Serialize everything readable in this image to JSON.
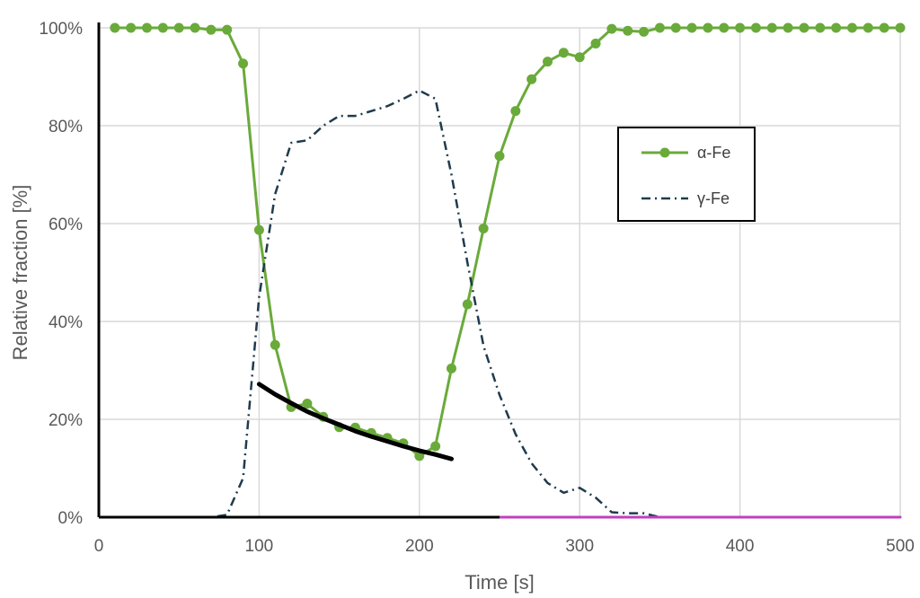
{
  "chart_data": {
    "type": "line",
    "title": "",
    "xlabel": "Time [s]",
    "ylabel": "Relative fraction [%]",
    "xlim": [
      0,
      500
    ],
    "ylim": [
      0,
      100
    ],
    "xticks": [
      0,
      100,
      200,
      300,
      400,
      500
    ],
    "yticks": [
      0,
      20,
      40,
      60,
      80,
      100
    ],
    "xtick_labels": [
      "0",
      "100",
      "200",
      "300",
      "400",
      "500"
    ],
    "ytick_labels": [
      "0%",
      "20%",
      "40%",
      "60%",
      "80%",
      "100%"
    ],
    "grid": true,
    "legend": {
      "position": "right",
      "entries": [
        "α-Fe",
        "γ-Fe"
      ]
    },
    "series": [
      {
        "name": "α-Fe",
        "style": "solid-markers",
        "color": "#6aaa3a",
        "x": [
          10,
          20,
          30,
          40,
          50,
          60,
          70,
          80,
          90,
          100,
          110,
          120,
          130,
          140,
          150,
          160,
          170,
          180,
          190,
          200,
          210,
          220,
          230,
          240,
          250,
          260,
          270,
          280,
          290,
          300,
          310,
          320,
          330,
          340,
          350,
          360,
          370,
          380,
          390,
          400,
          410,
          420,
          430,
          440,
          450,
          460,
          470,
          480,
          490,
          500
        ],
        "y": [
          100,
          100,
          100,
          100,
          100,
          100,
          99.6,
          99.6,
          92.7,
          58.7,
          35.2,
          22.5,
          23.2,
          20.5,
          18.4,
          18.3,
          17.2,
          16.2,
          15.1,
          12.5,
          14.5,
          30.4,
          43.5,
          59,
          73.8,
          83,
          89.5,
          93.1,
          94.9,
          94,
          96.8,
          99.8,
          99.4,
          99.2,
          100,
          100,
          100,
          100,
          100,
          100,
          100,
          100,
          100,
          100,
          100,
          100,
          100,
          100,
          100,
          100
        ]
      },
      {
        "name": "γ-Fe",
        "style": "dash-dot",
        "color": "#1f3b4d",
        "x": [
          0,
          70,
          80,
          90,
          100,
          110,
          120,
          130,
          140,
          150,
          160,
          170,
          180,
          190,
          200,
          210,
          220,
          230,
          240,
          250,
          260,
          270,
          280,
          290,
          300,
          310,
          320,
          330,
          340,
          350,
          400,
          500
        ],
        "y": [
          0,
          0,
          0.5,
          8,
          45,
          66,
          76.5,
          77,
          80,
          82,
          82,
          83,
          84,
          85.5,
          87.2,
          85.5,
          70,
          52,
          35,
          25,
          17,
          11,
          7,
          5,
          6,
          4,
          1,
          0.8,
          0.8,
          0,
          0,
          0
        ]
      },
      {
        "style": "fit-curve",
        "color": "#000000",
        "x": [
          100,
          110,
          120,
          130,
          140,
          150,
          160,
          170,
          180,
          190,
          200,
          210,
          220
        ],
        "y": [
          27.2,
          25.1,
          23.3,
          21.6,
          20.2,
          18.9,
          17.6,
          16.5,
          15.5,
          14.5,
          13.6,
          12.8,
          11.9
        ]
      },
      {
        "style": "solid",
        "color": "#c03fc0",
        "x": [
          250,
          500
        ],
        "y": [
          0,
          0
        ]
      }
    ]
  }
}
